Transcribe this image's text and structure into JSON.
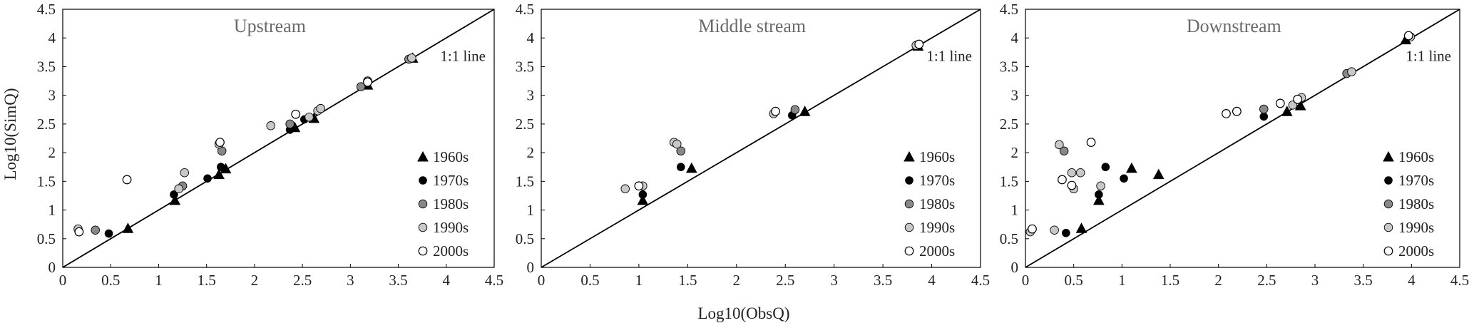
{
  "figure": {
    "xlabel": "Log10(ObsQ)",
    "ylabel": "Log10(SimQ)"
  },
  "chart_data": [
    {
      "type": "scatter",
      "title": "Upstream",
      "xlabel": "Log10(ObsQ)",
      "ylabel": "Log10(SimQ)",
      "xlim": [
        0,
        4.5
      ],
      "ylim": [
        0,
        4.5
      ],
      "ticks": [
        "0",
        "0.5",
        "1",
        "1.5",
        "2",
        "2.5",
        "3",
        "3.5",
        "4",
        "4.5"
      ],
      "reference_line_label": "1:1 line",
      "grid": false,
      "legend_position": "lower-right",
      "series": [
        {
          "name": "1960s",
          "marker": "triangle-filled",
          "color": "#000000",
          "points": [
            [
              0.68,
              0.68
            ],
            [
              1.17,
              1.17
            ],
            [
              1.63,
              1.62
            ],
            [
              1.7,
              1.72
            ],
            [
              2.42,
              2.44
            ],
            [
              2.62,
              2.6
            ],
            [
              3.18,
              3.18
            ],
            [
              3.65,
              3.65
            ]
          ]
        },
        {
          "name": "1970s",
          "marker": "circle-filled",
          "color": "#000000",
          "points": [
            [
              0.48,
              0.59
            ],
            [
              1.16,
              1.27
            ],
            [
              1.51,
              1.55
            ],
            [
              1.65,
              1.75
            ],
            [
              2.37,
              2.4
            ],
            [
              2.52,
              2.58
            ]
          ]
        },
        {
          "name": "1980s",
          "marker": "circle-filled",
          "color": "#888888",
          "points": [
            [
              0.34,
              0.65
            ],
            [
              1.25,
              1.42
            ],
            [
              1.66,
              2.03
            ],
            [
              2.37,
              2.5
            ],
            [
              3.11,
              3.15
            ],
            [
              3.61,
              3.63
            ]
          ]
        },
        {
          "name": "1990s",
          "marker": "circle-filled",
          "color": "#c8c8c8",
          "points": [
            [
              0.16,
              0.67
            ],
            [
              1.21,
              1.37
            ],
            [
              1.27,
              1.65
            ],
            [
              1.63,
              2.15
            ],
            [
              2.17,
              2.47
            ],
            [
              2.57,
              2.62
            ],
            [
              2.66,
              2.73
            ],
            [
              2.69,
              2.77
            ],
            [
              3.18,
              3.25
            ],
            [
              3.64,
              3.65
            ]
          ]
        },
        {
          "name": "2000s",
          "marker": "circle-open",
          "color": "#ffffff",
          "points": [
            [
              0.17,
              0.62
            ],
            [
              0.67,
              1.53
            ],
            [
              1.64,
              2.18
            ],
            [
              2.43,
              2.67
            ],
            [
              3.18,
              3.23
            ]
          ]
        }
      ]
    },
    {
      "type": "scatter",
      "title": "Middle stream",
      "xlabel": "Log10(ObsQ)",
      "ylabel": "Log10(SimQ)",
      "xlim": [
        0,
        4.5
      ],
      "ylim": [
        0,
        4.5
      ],
      "ticks": [
        "0",
        "0.5",
        "1",
        "1.5",
        "2",
        "2.5",
        "3",
        "3.5",
        "4",
        "4.5"
      ],
      "reference_line_label": "1:1 line",
      "grid": false,
      "legend_position": "lower-right",
      "series": [
        {
          "name": "1960s",
          "marker": "triangle-filled",
          "color": "#000000",
          "points": [
            [
              1.04,
              1.17
            ],
            [
              1.54,
              1.73
            ],
            [
              2.7,
              2.72
            ],
            [
              3.86,
              3.86
            ]
          ]
        },
        {
          "name": "1970s",
          "marker": "circle-filled",
          "color": "#000000",
          "points": [
            [
              1.04,
              1.27
            ],
            [
              1.43,
              1.75
            ],
            [
              2.57,
              2.65
            ]
          ]
        },
        {
          "name": "1980s",
          "marker": "circle-filled",
          "color": "#888888",
          "points": [
            [
              1.43,
              2.03
            ],
            [
              2.6,
              2.75
            ]
          ]
        },
        {
          "name": "1990s",
          "marker": "circle-filled",
          "color": "#c8c8c8",
          "points": [
            [
              0.86,
              1.37
            ],
            [
              1.04,
              1.42
            ],
            [
              1.36,
              2.18
            ],
            [
              1.39,
              2.15
            ],
            [
              2.38,
              2.68
            ],
            [
              3.84,
              3.87
            ]
          ]
        },
        {
          "name": "2000s",
          "marker": "circle-open",
          "color": "#ffffff",
          "points": [
            [
              1.0,
              1.42
            ],
            [
              2.4,
              2.72
            ],
            [
              3.87,
              3.89
            ]
          ]
        }
      ]
    },
    {
      "type": "scatter",
      "title": "Downstream",
      "xlabel": "Log10(ObsQ)",
      "ylabel": "Log10(SimQ)",
      "xlim": [
        0,
        4.5
      ],
      "ylim": [
        0,
        4.5
      ],
      "ticks": [
        "0",
        "0.5",
        "1",
        "1.5",
        "2",
        "2.5",
        "3",
        "3.5",
        "4",
        "4.5"
      ],
      "reference_line_label": "1:1 line",
      "grid": false,
      "legend_position": "lower-right",
      "series": [
        {
          "name": "1960s",
          "marker": "triangle-filled",
          "color": "#000000",
          "points": [
            [
              0.58,
              0.68
            ],
            [
              0.76,
              1.17
            ],
            [
              1.1,
              1.73
            ],
            [
              1.38,
              1.62
            ],
            [
              2.71,
              2.72
            ],
            [
              2.85,
              2.82
            ],
            [
              3.94,
              3.97
            ]
          ]
        },
        {
          "name": "1970s",
          "marker": "circle-filled",
          "color": "#000000",
          "points": [
            [
              0.42,
              0.6
            ],
            [
              0.76,
              1.27
            ],
            [
              0.83,
              1.75
            ],
            [
              1.02,
              1.55
            ],
            [
              2.47,
              2.63
            ]
          ]
        },
        {
          "name": "1980s",
          "marker": "circle-filled",
          "color": "#888888",
          "points": [
            [
              0.4,
              2.03
            ],
            [
              2.47,
              2.76
            ],
            [
              3.33,
              3.38
            ]
          ]
        },
        {
          "name": "1990s",
          "marker": "circle-filled",
          "color": "#c8c8c8",
          "points": [
            [
              0.05,
              0.62
            ],
            [
              0.3,
              0.65
            ],
            [
              0.35,
              2.14
            ],
            [
              0.48,
              1.65
            ],
            [
              0.5,
              1.37
            ],
            [
              0.57,
              1.65
            ],
            [
              0.78,
              1.42
            ],
            [
              2.77,
              2.83
            ],
            [
              2.86,
              2.96
            ],
            [
              3.38,
              3.41
            ],
            [
              3.99,
              4.02
            ]
          ]
        },
        {
          "name": "2000s",
          "marker": "circle-open",
          "color": "#ffffff",
          "points": [
            [
              0.07,
              0.67
            ],
            [
              0.38,
              1.53
            ],
            [
              0.48,
              1.43
            ],
            [
              0.68,
              2.18
            ],
            [
              2.08,
              2.68
            ],
            [
              2.19,
              2.72
            ],
            [
              2.64,
              2.86
            ],
            [
              2.82,
              2.93
            ],
            [
              3.97,
              4.04
            ]
          ]
        }
      ]
    }
  ]
}
